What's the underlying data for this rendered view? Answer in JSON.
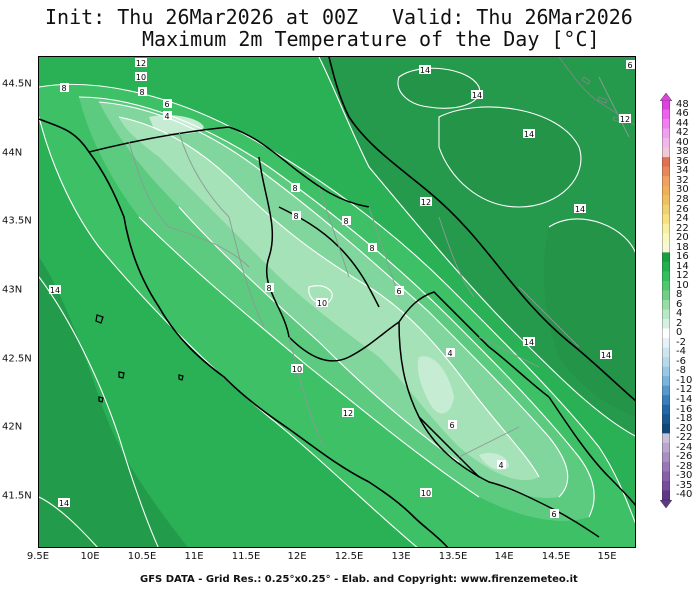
{
  "header": {
    "init": "Init: Thu 26Mar2026 at 00Z",
    "valid": "Valid: Thu 26Mar2026",
    "subtitle": "Maximum 2m Temperature of the Day [°C]"
  },
  "axes": {
    "x_ticks": [
      "9.5E",
      "10E",
      "10.5E",
      "11E",
      "11.5E",
      "12E",
      "12.5E",
      "13E",
      "13.5E",
      "14E",
      "14.5E",
      "15E"
    ],
    "y_ticks": [
      "44.5N",
      "44N",
      "43.5N",
      "43N",
      "42.5N",
      "42N",
      "41.5N"
    ]
  },
  "colorbar": {
    "labels": [
      "48",
      "46",
      "44",
      "42",
      "40",
      "38",
      "36",
      "34",
      "32",
      "30",
      "28",
      "26",
      "24",
      "22",
      "20",
      "18",
      "16",
      "14",
      "12",
      "10",
      "8",
      "6",
      "4",
      "2",
      "0",
      "-2",
      "-4",
      "-6",
      "-8",
      "-10",
      "-12",
      "-14",
      "-16",
      "-18",
      "-20",
      "-22",
      "-24",
      "-26",
      "-28",
      "-30",
      "-35",
      "-40"
    ],
    "colors": [
      "#e040e0",
      "#f060f0",
      "#f080f0",
      "#f0a0f0",
      "#f0b8e8",
      "#f0c8d8",
      "#e07050",
      "#e88858",
      "#f0a060",
      "#f0b058",
      "#f0c060",
      "#f0d070",
      "#f8e080",
      "#f8f0a0",
      "#f8f8c0",
      "#f8f8d8",
      "#18a040",
      "#20b050",
      "#30c060",
      "#50c870",
      "#70d088",
      "#98dca8",
      "#b8e8c8",
      "#d8f0e0",
      "#ffffff",
      "#e8f0f8",
      "#d0e4f0",
      "#b8d8ec",
      "#98c8e4",
      "#78b4dc",
      "#5898cc",
      "#3880bc",
      "#2068a8",
      "#185890",
      "#104878",
      "#c8c0d8",
      "#b8a8cc",
      "#a890c0",
      "#9878b4",
      "#8860a8",
      "#784c9c",
      "#603888"
    ]
  },
  "contour_labels": [
    {
      "text": "12"
    },
    {
      "text": "10"
    },
    {
      "text": "8"
    },
    {
      "text": "8"
    },
    {
      "text": "6"
    },
    {
      "text": "4"
    },
    {
      "text": "8"
    },
    {
      "text": "8"
    },
    {
      "text": "8"
    },
    {
      "text": "8"
    },
    {
      "text": "12"
    },
    {
      "text": "14"
    },
    {
      "text": "14"
    },
    {
      "text": "14"
    },
    {
      "text": "14"
    },
    {
      "text": "6"
    },
    {
      "text": "12"
    },
    {
      "text": "14"
    },
    {
      "text": "8"
    },
    {
      "text": "10"
    },
    {
      "text": "6"
    },
    {
      "text": "4"
    },
    {
      "text": "14"
    },
    {
      "text": "14"
    },
    {
      "text": "10"
    },
    {
      "text": "12"
    },
    {
      "text": "6"
    },
    {
      "text": "4"
    },
    {
      "text": "10"
    },
    {
      "text": "6"
    },
    {
      "text": "14"
    }
  ],
  "footer": "GFS DATA - Grid Res.: 0.25°x0.25° - Elab. and Copyright: www.firenzemeteo.it"
}
